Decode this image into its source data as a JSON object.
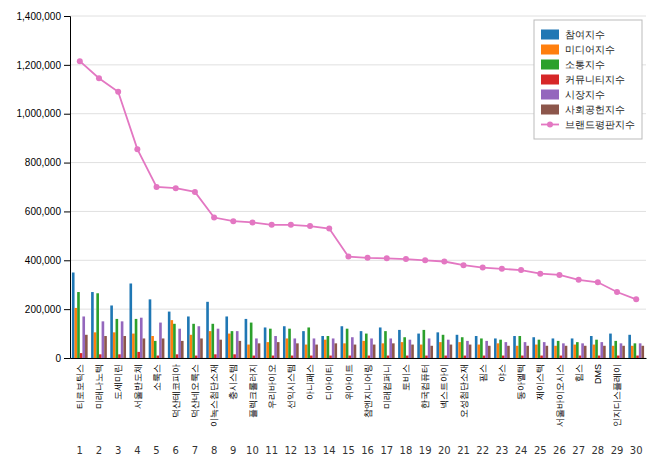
{
  "chart_data": {
    "type": "bar",
    "categories": [
      "티로보틱스",
      "미래나노텍",
      "도세미린",
      "서울반도체",
      "소룩스",
      "덕산테코피아",
      "덕산네오룩스",
      "이녹스첨단소재",
      "충시스템",
      "플렉크롤러지",
      "우리바이오",
      "선익시스템",
      "아니패스",
      "디아이티",
      "위아이트",
      "참엔지니어링",
      "미래컴퍼니",
      "토비스",
      "한국컴퓨터",
      "넥스트아이",
      "오성첨단소재",
      "핌스",
      "야스",
      "동아엘텍",
      "제이스텍",
      "서울바이오시스",
      "힘스",
      "DMS",
      "인지디스플레이",
      null
    ],
    "annotations": [
      "1",
      "2",
      "3",
      "4",
      "5",
      "6",
      "7",
      "8",
      "9",
      "10",
      "11",
      "12",
      "13",
      "14",
      "15",
      "16",
      "17",
      "18",
      "19",
      "20",
      "21",
      "22",
      "23",
      "24",
      "25",
      "26",
      "27",
      "28",
      "29",
      "30"
    ],
    "series": [
      {
        "name": "참여지수",
        "type": "bar",
        "values": [
          350000,
          270000,
          215000,
          305000,
          240000,
          190000,
          170000,
          230000,
          170000,
          160000,
          125000,
          130000,
          110000,
          90000,
          130000,
          110000,
          125000,
          115000,
          100000,
          105000,
          95000,
          90000,
          80000,
          90000,
          85000,
          80000,
          80000,
          90000,
          100000,
          95000
        ]
      },
      {
        "name": "미디어지수",
        "type": "bar",
        "values": [
          205000,
          105000,
          105000,
          100000,
          90000,
          155000,
          95000,
          110000,
          100000,
          55000,
          65000,
          80000,
          55000,
          75000,
          60000,
          70000,
          60000,
          65000,
          55000,
          65000,
          65000,
          55000,
          60000,
          50000,
          55000,
          50000,
          55000,
          55000,
          50000,
          50000
        ]
      },
      {
        "name": "소통지수",
        "type": "bar",
        "values": [
          270000,
          265000,
          160000,
          160000,
          70000,
          140000,
          140000,
          140000,
          110000,
          145000,
          120000,
          120000,
          125000,
          90000,
          120000,
          100000,
          110000,
          85000,
          115000,
          95000,
          85000,
          80000,
          75000,
          90000,
          75000,
          70000,
          65000,
          75000,
          70000,
          60000
        ]
      },
      {
        "name": "커뮤니티지수",
        "type": "bar",
        "values": [
          20000,
          15000,
          15000,
          25000,
          10000,
          15000,
          10000,
          15000,
          15000,
          10000,
          10000,
          10000,
          10000,
          10000,
          10000,
          10000,
          10000,
          10000,
          10000,
          10000,
          10000,
          10000,
          10000,
          10000,
          10000,
          10000,
          10000,
          10000,
          10000,
          10000
        ]
      },
      {
        "name": "시장지수",
        "type": "bar",
        "values": [
          170000,
          150000,
          150000,
          165000,
          145000,
          120000,
          130000,
          120000,
          110000,
          80000,
          90000,
          80000,
          80000,
          80000,
          85000,
          80000,
          80000,
          75000,
          80000,
          75000,
          70000,
          70000,
          65000,
          65000,
          65000,
          60000,
          60000,
          65000,
          60000,
          60000
        ]
      },
      {
        "name": "사회공헌지수",
        "type": "bar",
        "values": [
          95000,
          90000,
          90000,
          80000,
          80000,
          70000,
          80000,
          75000,
          70000,
          60000,
          65000,
          60000,
          55000,
          60000,
          55000,
          55000,
          60000,
          55000,
          50000,
          55000,
          55000,
          50000,
          50000,
          50000,
          50000,
          50000,
          50000,
          50000,
          50000,
          50000
        ]
      },
      {
        "name": "브랜드평판지수",
        "type": "line",
        "marker": "circle",
        "values": [
          1215000,
          1145000,
          1090000,
          855000,
          700000,
          695000,
          680000,
          575000,
          560000,
          555000,
          545000,
          545000,
          540000,
          530000,
          415000,
          410000,
          408000,
          405000,
          400000,
          395000,
          380000,
          370000,
          365000,
          360000,
          345000,
          340000,
          320000,
          310000,
          270000,
          240000
        ]
      }
    ],
    "ylim": [
      0,
      1400000
    ],
    "yticks": [
      0,
      {
        "value": 200000,
        "label": "200,000"
      },
      {
        "value": 400000,
        "label": "400,000"
      },
      {
        "value": 600000,
        "label": "600,000"
      },
      {
        "value": 800000,
        "label": "800,000"
      },
      {
        "value": 1000000,
        "label": "1,000,000"
      },
      {
        "value": 1200000,
        "label": "1,200,000"
      },
      {
        "value": 1400000,
        "label": "1,400,000"
      }
    ],
    "grid": true,
    "legend": "upper right"
  }
}
